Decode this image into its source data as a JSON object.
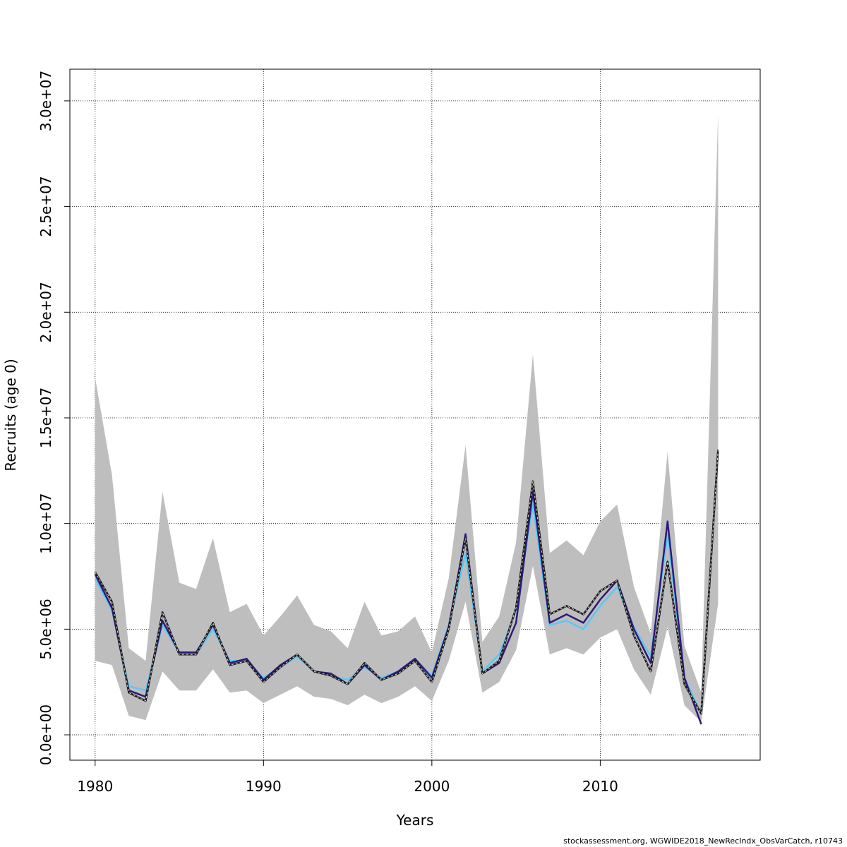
{
  "chart_data": {
    "type": "line",
    "xlabel": "Years",
    "ylabel": "Recruits (age 0)",
    "xlim": [
      1978.5,
      2019.5
    ],
    "ylim": [
      -1200000,
      31500000
    ],
    "x_ticks": [
      1980,
      1990,
      2000,
      2010
    ],
    "x_tick_labels": [
      "1980",
      "1990",
      "2000",
      "2010"
    ],
    "y_ticks": [
      0,
      5000000,
      10000000,
      15000000,
      20000000,
      25000000,
      30000000
    ],
    "y_tick_labels": [
      "0.0e+00",
      "5.0e+06",
      "1.0e+07",
      "1.5e+07",
      "2.0e+07",
      "2.5e+07",
      "3.0e+07"
    ],
    "grid": true,
    "x": [
      1980,
      1981,
      1982,
      1983,
      1984,
      1985,
      1986,
      1987,
      1988,
      1989,
      1990,
      1991,
      1992,
      1993,
      1994,
      1995,
      1996,
      1997,
      1998,
      1999,
      2000,
      2001,
      2002,
      2003,
      2004,
      2005,
      2006,
      2007,
      2008,
      2009,
      2010,
      2011,
      2012,
      2013,
      2014,
      2015,
      2016,
      2017
    ],
    "band": {
      "upper": [
        16900000,
        12300000,
        4100000,
        3500000,
        11500000,
        7200000,
        6900000,
        9300000,
        5800000,
        6200000,
        4700000,
        5600000,
        6600000,
        5200000,
        4900000,
        4100000,
        6300000,
        4700000,
        4900000,
        5600000,
        3900000,
        7400000,
        13700000,
        4400000,
        5600000,
        9100000,
        18000000,
        8600000,
        9200000,
        8500000,
        10100000,
        10900000,
        7000000,
        4800000,
        13400000,
        4200000,
        2000000,
        29400000
      ],
      "lower": [
        3500000,
        3300000,
        900000,
        700000,
        3000000,
        2100000,
        2100000,
        3100000,
        2000000,
        2100000,
        1500000,
        1900000,
        2300000,
        1800000,
        1700000,
        1400000,
        1900000,
        1500000,
        1800000,
        2300000,
        1600000,
        3500000,
        6300000,
        2000000,
        2500000,
        4000000,
        8000000,
        3800000,
        4100000,
        3800000,
        4600000,
        5000000,
        3100000,
        1900000,
        5100000,
        1400000,
        600000,
        6200000
      ]
    },
    "series": [
      {
        "color": "#1a1a1a",
        "dashed_overlay": true,
        "values": [
          7700000,
          6300000,
          2000000,
          1600000,
          5800000,
          3800000,
          3800000,
          5300000,
          3300000,
          3500000,
          2500000,
          3200000,
          3800000,
          3000000,
          2800000,
          2400000,
          3400000,
          2600000,
          2900000,
          3500000,
          2500000,
          5000000,
          9300000,
          2900000,
          3500000,
          6000000,
          12000000,
          5700000,
          6100000,
          5700000,
          6800000,
          7300000,
          4700000,
          3000000,
          8200000,
          2400000,
          1000000,
          13500000
        ]
      },
      {
        "color": "#2e1a7a",
        "values": [
          7600000,
          6000000,
          2100000,
          1800000,
          5400000,
          3900000,
          3900000,
          5200000,
          3400000,
          3600000,
          2600000,
          3300000,
          3800000,
          3000000,
          2900000,
          2400000,
          3300000,
          2600000,
          3000000,
          3600000,
          2700000,
          5100000,
          9500000,
          2900000,
          3400000,
          5300000,
          11500000,
          5300000,
          5700000,
          5300000,
          6400000,
          7300000,
          5000000,
          3400000,
          10100000,
          2700000,
          500000,
          null
        ]
      },
      {
        "color": "#5bc8f5",
        "values": [
          7400000,
          5900000,
          2300000,
          2100000,
          5200000,
          3900000,
          3800000,
          5000000,
          3500000,
          3500000,
          2700000,
          3200000,
          3700000,
          3000000,
          2800000,
          2600000,
          3200000,
          2700000,
          3000000,
          3600000,
          2800000,
          5200000,
          8600000,
          3000000,
          3800000,
          5900000,
          10900000,
          5200000,
          5400000,
          5000000,
          6100000,
          7000000,
          5100000,
          3700000,
          9500000,
          2700000,
          1000000,
          null
        ]
      }
    ]
  },
  "footer": {
    "credit": "stockassessment.org, WGWIDE2018_NewRecIndx_ObsVarCatch, r10743"
  },
  "colors": {
    "band": "#bebebe",
    "grid": "#000000"
  }
}
